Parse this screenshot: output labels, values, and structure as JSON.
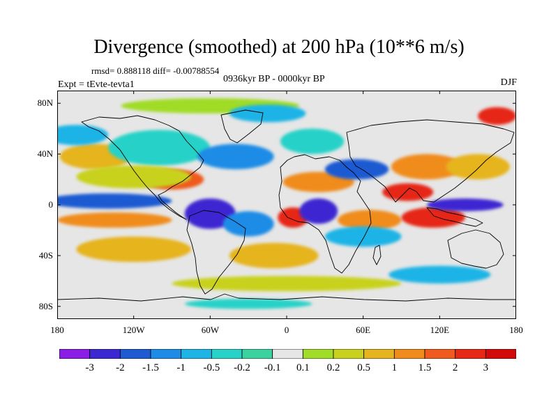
{
  "header": {
    "title": "Divergence (smoothed) at 200 hPa (10**6 m/s)",
    "stats": "rmsd= 0.888118 diff= -0.00788554",
    "period": "0936kyr BP - 0000kyr BP",
    "experiment": "Expt = tEvte-tevta1",
    "season": "DJF"
  },
  "axes": {
    "lat_labels": [
      "80N",
      "40N",
      "0",
      "40S",
      "80S"
    ],
    "lon_labels": [
      "180",
      "120W",
      "60W",
      "0",
      "60E",
      "120E",
      "180"
    ]
  },
  "colorbar": {
    "labels": [
      "-3",
      "-2",
      "-1.5",
      "-1",
      "-0.5",
      "-0.2",
      "-0.1",
      "0.1",
      "0.2",
      "0.5",
      "1",
      "1.5",
      "2",
      "3"
    ],
    "colors": [
      "#8a1ee6",
      "#3c28d2",
      "#1f5ad2",
      "#1e8ce6",
      "#1eb4e6",
      "#28d2c8",
      "#3cd2a0",
      "#e6e6e6",
      "#a0dc28",
      "#c8d21e",
      "#e6b41e",
      "#f08c1e",
      "#f05a1e",
      "#e62814",
      "#d20a0a"
    ]
  },
  "map_data": {
    "background_color": "#e6e6e6",
    "features": [
      {
        "name": "arctic-positive",
        "color": "#a0dc28",
        "cx": -60,
        "cy": 78,
        "rx": 70,
        "ry": 6
      },
      {
        "name": "arctic-cyan",
        "color": "#1eb4e6",
        "cx": -15,
        "cy": 72,
        "rx": 30,
        "ry": 7
      },
      {
        "name": "n-pacific-orange",
        "color": "#e6b41e",
        "cx": -150,
        "cy": 38,
        "rx": 28,
        "ry": 10
      },
      {
        "name": "n-pacific-cyan",
        "color": "#1eb4e6",
        "cx": -165,
        "cy": 55,
        "rx": 25,
        "ry": 8
      },
      {
        "name": "n-america-cyan",
        "color": "#28d2c8",
        "cx": -100,
        "cy": 45,
        "rx": 40,
        "ry": 14
      },
      {
        "name": "atlantic-cyan",
        "color": "#1e8ce6",
        "cx": -40,
        "cy": 38,
        "rx": 30,
        "ry": 10
      },
      {
        "name": "europe-cyan",
        "color": "#28d2c8",
        "cx": 20,
        "cy": 50,
        "rx": 25,
        "ry": 10
      },
      {
        "name": "mexico-red",
        "color": "#f05a1e",
        "cx": -90,
        "cy": 20,
        "rx": 25,
        "ry": 8
      },
      {
        "name": "e-pacific-yellow",
        "color": "#c8d21e",
        "cx": -120,
        "cy": 22,
        "rx": 45,
        "ry": 9
      },
      {
        "name": "eq-pacific-blue",
        "color": "#1f5ad2",
        "cx": -140,
        "cy": 3,
        "rx": 50,
        "ry": 6
      },
      {
        "name": "eq-pacific-orange",
        "color": "#f08c1e",
        "cx": -135,
        "cy": -12,
        "rx": 45,
        "ry": 6
      },
      {
        "name": "s-pacific-orange",
        "color": "#e6b41e",
        "cx": -120,
        "cy": -35,
        "rx": 45,
        "ry": 10
      },
      {
        "name": "amazon-purple",
        "color": "#3c28d2",
        "cx": -60,
        "cy": -7,
        "rx": 20,
        "ry": 12
      },
      {
        "name": "s-atlantic-cyan",
        "color": "#1e8ce6",
        "cx": -30,
        "cy": -15,
        "rx": 20,
        "ry": 10
      },
      {
        "name": "s-atlantic-yellow",
        "color": "#e6b41e",
        "cx": -10,
        "cy": -40,
        "rx": 35,
        "ry": 10
      },
      {
        "name": "w-africa-red",
        "color": "#e62814",
        "cx": 5,
        "cy": -10,
        "rx": 12,
        "ry": 8
      },
      {
        "name": "africa-blue",
        "color": "#3c28d2",
        "cx": 25,
        "cy": -5,
        "rx": 15,
        "ry": 10
      },
      {
        "name": "sahara-orange",
        "color": "#f08c1e",
        "cx": 25,
        "cy": 18,
        "rx": 28,
        "ry": 8
      },
      {
        "name": "arabia-blue",
        "color": "#1f5ad2",
        "cx": 55,
        "cy": 28,
        "rx": 25,
        "ry": 8
      },
      {
        "name": "s-indian-orange",
        "color": "#f08c1e",
        "cx": 65,
        "cy": -12,
        "rx": 25,
        "ry": 8
      },
      {
        "name": "indian-cyan",
        "color": "#1eb4e6",
        "cx": 60,
        "cy": -25,
        "rx": 30,
        "ry": 8
      },
      {
        "name": "india-red",
        "color": "#e62814",
        "cx": 95,
        "cy": 10,
        "rx": 20,
        "ry": 7
      },
      {
        "name": "china-orange",
        "color": "#f08c1e",
        "cx": 110,
        "cy": 30,
        "rx": 28,
        "ry": 10
      },
      {
        "name": "indonesia-red",
        "color": "#e62814",
        "cx": 115,
        "cy": -10,
        "rx": 25,
        "ry": 8
      },
      {
        "name": "w-pacific-blue",
        "color": "#3c28d2",
        "cx": 140,
        "cy": 0,
        "rx": 30,
        "ry": 5
      },
      {
        "name": "nw-pacific-yellow",
        "color": "#e6b41e",
        "cx": 150,
        "cy": 30,
        "rx": 25,
        "ry": 10
      },
      {
        "name": "siberia-red",
        "color": "#e62814",
        "cx": 165,
        "cy": 70,
        "rx": 15,
        "ry": 7
      },
      {
        "name": "s-ocean-yellow",
        "color": "#c8d21e",
        "cx": 0,
        "cy": -62,
        "rx": 90,
        "ry": 6
      },
      {
        "name": "s-ocean-cyan",
        "color": "#1eb4e6",
        "cx": 120,
        "cy": -55,
        "rx": 40,
        "ry": 7
      },
      {
        "name": "antarctic-cyan",
        "color": "#28d2c8",
        "cx": -30,
        "cy": -78,
        "rx": 50,
        "ry": 4
      }
    ]
  }
}
